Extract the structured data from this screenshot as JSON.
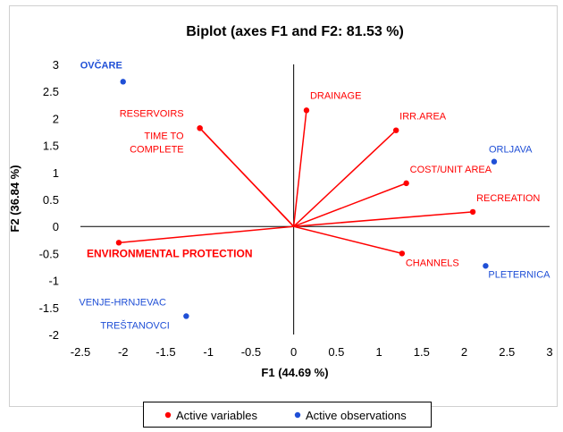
{
  "chart_data": {
    "type": "scatter",
    "title": "Biplot (axes F1 and F2: 81.53 %)",
    "xlabel": "F1 (44.69 %)",
    "ylabel": "F2 (36.84 %)",
    "xlim": [
      -2.5,
      3
    ],
    "ylim": [
      -2,
      3
    ],
    "xticks": [
      "-2.5",
      "-2",
      "-1.5",
      "-1",
      "-0.5",
      "0",
      "0.5",
      "1",
      "1.5",
      "2",
      "2.5",
      "3"
    ],
    "yticks": [
      "-2",
      "-1.5",
      "-1",
      "-0.5",
      "0",
      "0.5",
      "1",
      "1.5",
      "2",
      "2.5",
      "3"
    ],
    "grid": false,
    "legend_position": "bottom",
    "legend": [
      {
        "label": "Active variables",
        "color": "#ff0000"
      },
      {
        "label": "Active observations",
        "color": "#1f4fd6"
      }
    ],
    "variables": [
      {
        "label": "RESERVOIRS",
        "x": -1.1,
        "y": 1.82
      },
      {
        "label": "TIME TO COMPLETE",
        "x": -1.1,
        "y": 1.82
      },
      {
        "label": "DRAINAGE",
        "x": 0.15,
        "y": 2.15
      },
      {
        "label": "IRR.AREA",
        "x": 1.2,
        "y": 1.78
      },
      {
        "label": "COST/UNIT AREA",
        "x": 1.32,
        "y": 0.8
      },
      {
        "label": "RECREATION",
        "x": 2.1,
        "y": 0.27
      },
      {
        "label": "CHANNELS",
        "x": 1.27,
        "y": -0.5
      },
      {
        "label": "ENVIRONMENTAL PROTECTION",
        "x": -2.05,
        "y": -0.3
      }
    ],
    "observations": [
      {
        "label": "OVČARE",
        "x": -2.0,
        "y": 2.68
      },
      {
        "label": "ORLJAVA",
        "x": 2.35,
        "y": 1.2
      },
      {
        "label": "PLETERNICA",
        "x": 2.25,
        "y": -0.73
      },
      {
        "label": "VENJE-HRNJEVAC",
        "x": -1.26,
        "y": -1.66
      },
      {
        "label": "TREŠTANOVCI",
        "x": -1.26,
        "y": -1.66
      }
    ],
    "colors": {
      "variables": "#ff0000",
      "observations": "#1f4fd6",
      "axes": "#000000"
    }
  }
}
